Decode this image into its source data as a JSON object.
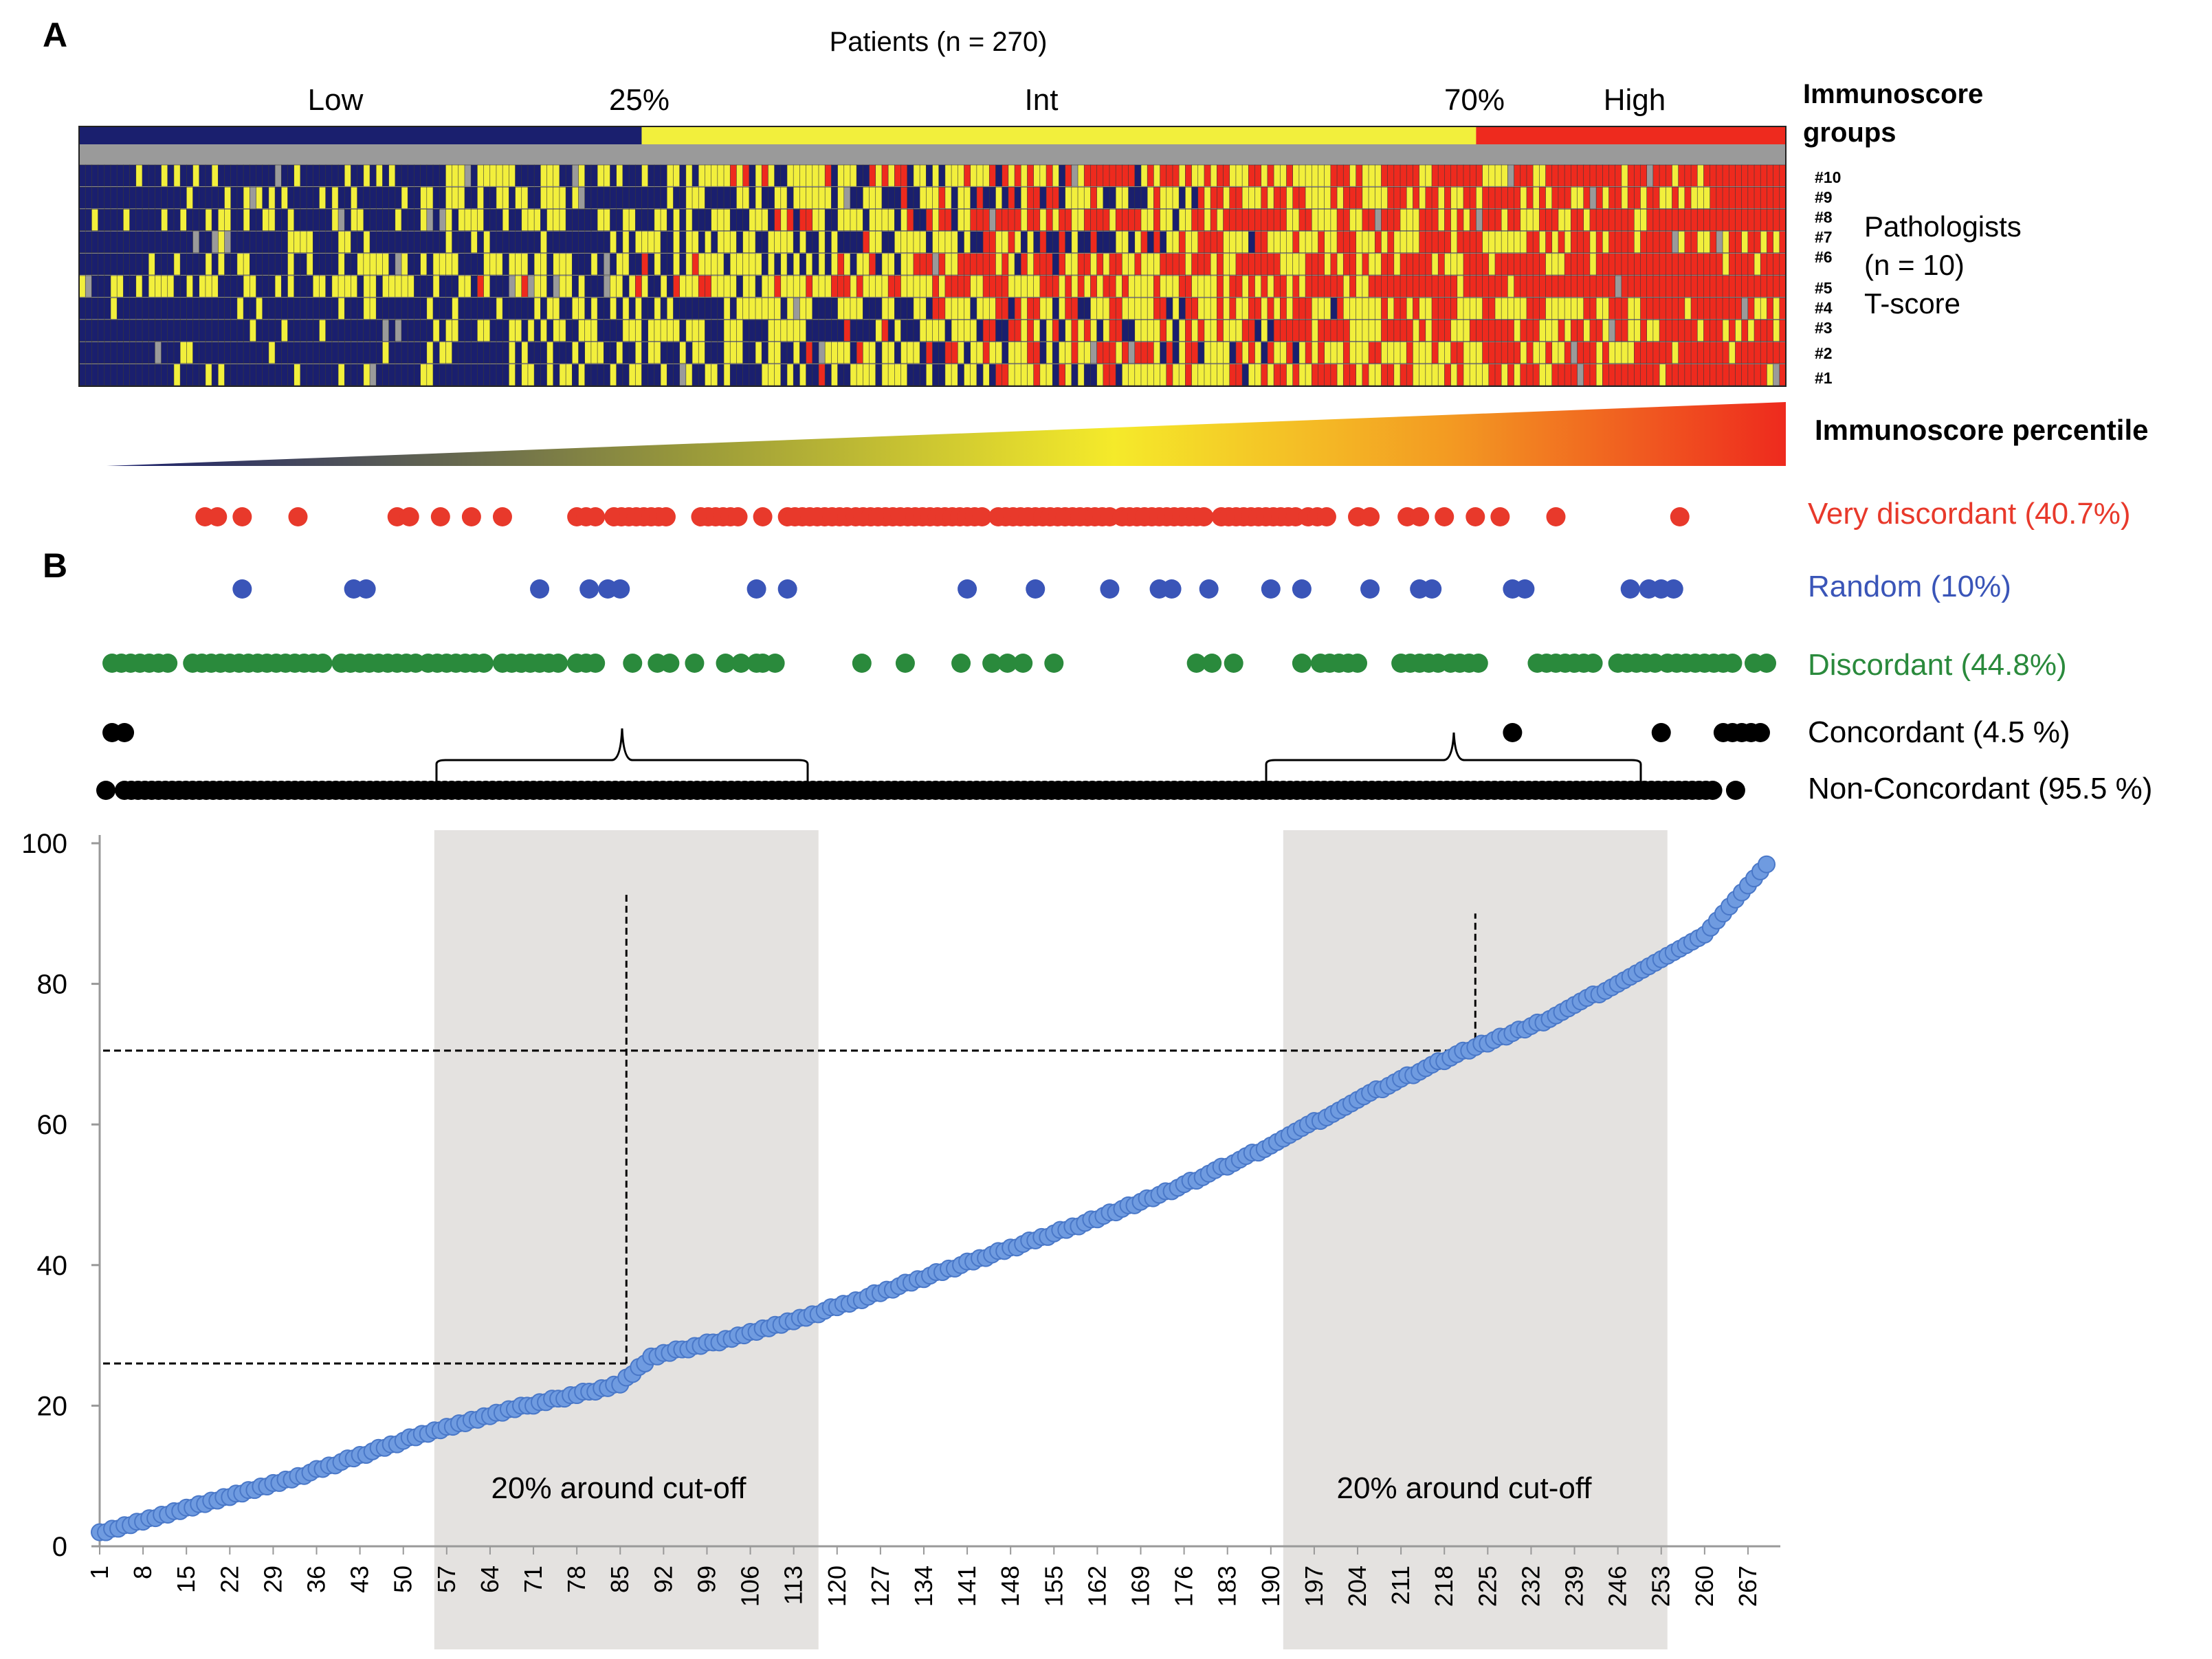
{
  "panel_a": {
    "label": "A",
    "title": "Patients (n = 270)",
    "group_labels": [
      "Low",
      "25%",
      "Int",
      "70%",
      "High"
    ],
    "groups_title_1": "Immunoscore",
    "groups_title_2": "groups",
    "row_labels": [
      "#10",
      "#9",
      "#8",
      "#7",
      "#6",
      "#5",
      "#4",
      "#3",
      "#2",
      "#1"
    ],
    "pathologists_1": "Pathologists",
    "pathologists_2": "(n = 10)",
    "tscore": "T-score",
    "gradient_label": "Immunoscore percentile",
    "n_patients": 270,
    "group_boundaries": [
      89,
      221
    ],
    "score_colors": {
      "low": "#1a1f6e",
      "int": "#f2ef3c",
      "high": "#ee2a1e",
      "na": "#9a9a9a"
    }
  },
  "panel_b": {
    "label": "B",
    "categories": [
      {
        "label": "Very discordant (40.7%)",
        "color": "#e8392b"
      },
      {
        "label": "Random (10%)",
        "color": "#3a55b8"
      },
      {
        "label": "Discordant (44.8%)",
        "color": "#2a8a3c"
      },
      {
        "label": "Concordant (4.5 %)",
        "color": "#000000"
      },
      {
        "label": "Non-Concordant (95.5 %)",
        "color": "#000000"
      }
    ]
  },
  "chart_data": {
    "type": "scatter",
    "title": "",
    "xlabel": "",
    "ylabel": "",
    "ylim": [
      0,
      100
    ],
    "yticks": [
      0,
      20,
      40,
      60,
      80,
      100
    ],
    "xticks": [
      1,
      8,
      15,
      22,
      29,
      36,
      43,
      50,
      57,
      64,
      71,
      78,
      85,
      92,
      99,
      106,
      113,
      120,
      127,
      134,
      141,
      148,
      155,
      162,
      169,
      176,
      183,
      190,
      197,
      204,
      211,
      218,
      225,
      232,
      239,
      246,
      253,
      260,
      267
    ],
    "xlim": [
      1,
      270
    ],
    "series": [
      {
        "name": "Immunoscore percentile",
        "color": "#6f9be0",
        "x_range": [
          1,
          270
        ],
        "y_anchors": [
          [
            1,
            2
          ],
          [
            10,
            4
          ],
          [
            30,
            9
          ],
          [
            50,
            15
          ],
          [
            57,
            17
          ],
          [
            70,
            20
          ],
          [
            85,
            23
          ],
          [
            90,
            27
          ],
          [
            100,
            29
          ],
          [
            113,
            32
          ],
          [
            130,
            37
          ],
          [
            140,
            40
          ],
          [
            160,
            46
          ],
          [
            175,
            51
          ],
          [
            190,
            57
          ],
          [
            205,
            64
          ],
          [
            220,
            70
          ],
          [
            235,
            75
          ],
          [
            250,
            82
          ],
          [
            260,
            87
          ],
          [
            265,
            92
          ],
          [
            270,
            97
          ]
        ]
      }
    ],
    "shaded_regions": [
      {
        "x": [
          55,
          117
        ],
        "label": "20% around cut-off"
      },
      {
        "x": [
          192,
          254
        ],
        "label": "20% around cut-off"
      }
    ],
    "cutoffs": [
      {
        "x": 86,
        "y": 26,
        "top": 93
      },
      {
        "x": 223,
        "y": 70.5,
        "top": 90
      }
    ]
  }
}
